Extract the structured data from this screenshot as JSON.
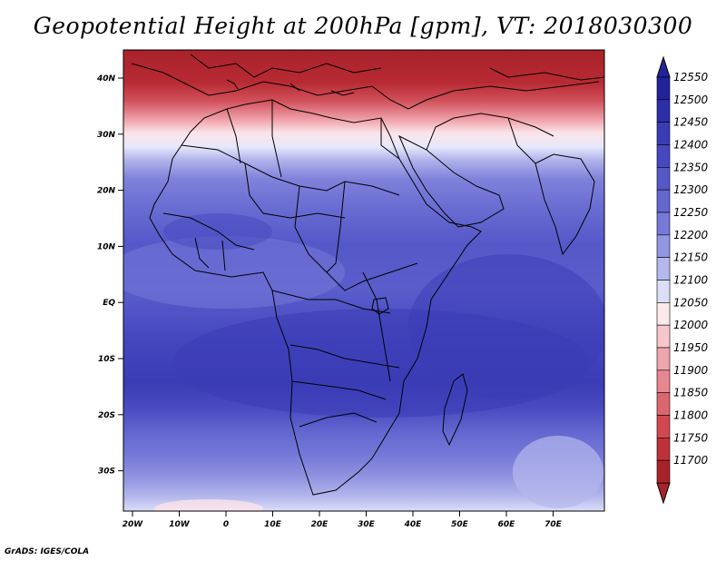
{
  "title": "Geopotential Height at 200hPa [gpm], VT: 2018030300",
  "credit": "GrADS: IGES/COLA",
  "map": {
    "lat_ticks": [
      "40N",
      "30N",
      "20N",
      "10N",
      "EQ",
      "10S",
      "20S",
      "30S"
    ],
    "lon_ticks": [
      "20W",
      "10W",
      "0",
      "10E",
      "20E",
      "30E",
      "40E",
      "50E",
      "60E",
      "70E"
    ]
  },
  "colorbar": {
    "levels": [
      "12550",
      "12500",
      "12450",
      "12400",
      "12350",
      "12300",
      "12250",
      "12200",
      "12150",
      "12100",
      "12050",
      "12000",
      "11950",
      "11900",
      "11850",
      "11800",
      "11750",
      "11700"
    ],
    "colors": [
      "#22239a",
      "#2d2fa8",
      "#3a3cb6",
      "#4648c0",
      "#5558c8",
      "#6467d0",
      "#7679d8",
      "#9396e0",
      "#b5b8ec",
      "#dcdef8",
      "#fbe9ec",
      "#f6c6cc",
      "#efa5ae",
      "#e68690",
      "#dc6670",
      "#d04852",
      "#c0303a",
      "#a8222a"
    ]
  }
}
